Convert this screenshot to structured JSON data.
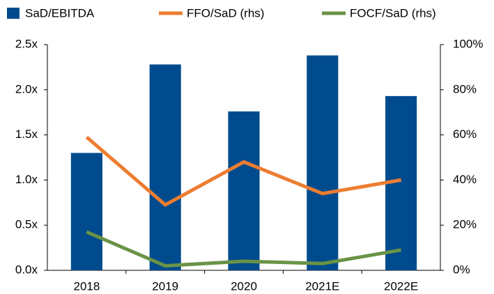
{
  "chart_data": {
    "type": "bar",
    "categories": [
      "2018",
      "2019",
      "2020",
      "2021E",
      "2022E"
    ],
    "series": [
      {
        "name": "SaD/EBITDA",
        "type": "bar",
        "color": "#004b8d",
        "values": [
          1.3,
          2.28,
          1.76,
          2.38,
          1.93
        ]
      },
      {
        "name": "FFO/SaD (rhs)",
        "type": "line",
        "axis": "y2",
        "color": "#ed7d31",
        "values": [
          59,
          29,
          48,
          34,
          40
        ]
      },
      {
        "name": "FOCF/SaD (rhs)",
        "type": "line",
        "axis": "y2",
        "color": "#6a9346",
        "values": [
          17,
          2,
          4,
          3,
          9
        ]
      }
    ],
    "ylim": [
      0,
      2.5
    ],
    "yticks": [
      {
        "value": 0,
        "label": "0.0x"
      },
      {
        "value": 0.5,
        "label": "0.5x"
      },
      {
        "value": 1,
        "label": "1.0x"
      },
      {
        "value": 1.5,
        "label": "1.5x"
      },
      {
        "value": 2,
        "label": "2.0x"
      },
      {
        "value": 2.5,
        "label": "2.5x"
      }
    ],
    "y2lim": [
      0,
      100
    ],
    "y2ticks": [
      {
        "value": 0,
        "label": "0%"
      },
      {
        "value": 20,
        "label": "20%"
      },
      {
        "value": 40,
        "label": "40%"
      },
      {
        "value": 60,
        "label": "60%"
      },
      {
        "value": 80,
        "label": "80%"
      },
      {
        "value": 100,
        "label": "100%"
      }
    ],
    "grid": false,
    "legend": "top"
  }
}
